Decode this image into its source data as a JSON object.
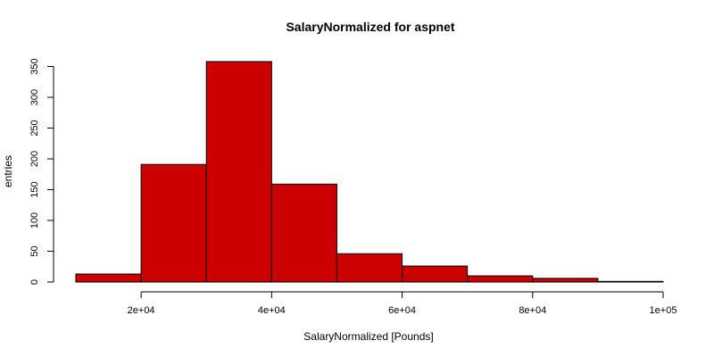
{
  "chart_data": {
    "type": "bar",
    "title": "SalaryNormalized for aspnet",
    "xlabel": "SalaryNormalized [Pounds]",
    "ylabel": "entries",
    "bin_edges": [
      10000,
      20000,
      30000,
      40000,
      50000,
      60000,
      70000,
      80000,
      90000,
      100000
    ],
    "values": [
      13,
      191,
      358,
      159,
      46,
      26,
      10,
      6,
      1
    ],
    "xlim": [
      10000,
      100000
    ],
    "ylim": [
      0,
      358
    ],
    "x_ticks": [
      20000,
      40000,
      60000,
      80000,
      100000
    ],
    "x_tick_labels": [
      "2e+04",
      "4e+04",
      "6e+04",
      "8e+04",
      "1e+05"
    ],
    "y_ticks": [
      0,
      50,
      100,
      150,
      200,
      250,
      300,
      350
    ],
    "y_tick_labels": [
      "0",
      "50",
      "100",
      "150",
      "200",
      "250",
      "300",
      "350"
    ],
    "bar_color": "#cc0000",
    "grid": false,
    "legend": "none"
  }
}
